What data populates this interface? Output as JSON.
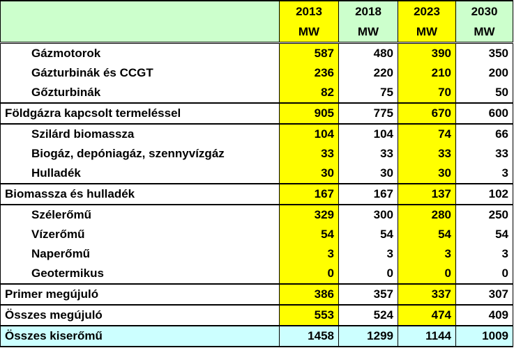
{
  "header": {
    "years": [
      "2013",
      "2018",
      "2023",
      "2030"
    ],
    "unit": "MW"
  },
  "rows": [
    {
      "label": "Gázmotorok",
      "values": [
        "587",
        "480",
        "390",
        "350"
      ]
    },
    {
      "label": "Gázturbinák és CCGT",
      "values": [
        "236",
        "220",
        "210",
        "200"
      ]
    },
    {
      "label": "Gőzturbinák",
      "values": [
        "82",
        "75",
        "70",
        "50"
      ]
    },
    {
      "label": "Földgázra kapcsolt termeléssel",
      "values": [
        "905",
        "775",
        "670",
        "600"
      ]
    },
    {
      "label": "Szilárd biomassza",
      "values": [
        "104",
        "104",
        "74",
        "66"
      ]
    },
    {
      "label": "Biogáz, depóniagáz, szennyvízgáz",
      "values": [
        "33",
        "33",
        "33",
        "33"
      ]
    },
    {
      "label": "Hulladék",
      "values": [
        "30",
        "30",
        "30",
        "3"
      ]
    },
    {
      "label": "Biomassza és hulladék",
      "values": [
        "167",
        "167",
        "137",
        "102"
      ]
    },
    {
      "label": "Szélerőmű",
      "values": [
        "329",
        "300",
        "280",
        "250"
      ]
    },
    {
      "label": "Vízerőmű",
      "values": [
        "54",
        "54",
        "54",
        "54"
      ]
    },
    {
      "label": "Naperőmű",
      "values": [
        "3",
        "3",
        "3",
        "3"
      ]
    },
    {
      "label": "Geotermikus",
      "values": [
        "0",
        "0",
        "0",
        "0"
      ]
    },
    {
      "label": "Primer megújuló",
      "values": [
        "386",
        "357",
        "337",
        "307"
      ]
    },
    {
      "label": "Összes megújuló",
      "values": [
        "553",
        "524",
        "474",
        "409"
      ]
    },
    {
      "label": "Összes kiserőmű",
      "values": [
        "1458",
        "1299",
        "1144",
        "1009"
      ]
    }
  ],
  "colors": {
    "header_bg": "#ccffcc",
    "highlight": "#ffff00",
    "total_bg": "#ccffff"
  }
}
